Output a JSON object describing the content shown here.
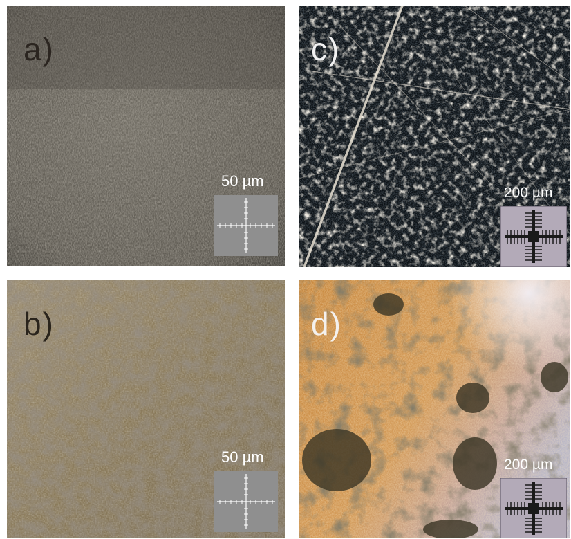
{
  "panels": {
    "a": {
      "label": "a)",
      "scale": "50 µm"
    },
    "b": {
      "label": "b)",
      "scale": "50 µm"
    },
    "c": {
      "label": "c)",
      "scale": "200 µm"
    },
    "d": {
      "label": "d)",
      "scale": "200 µm"
    }
  }
}
